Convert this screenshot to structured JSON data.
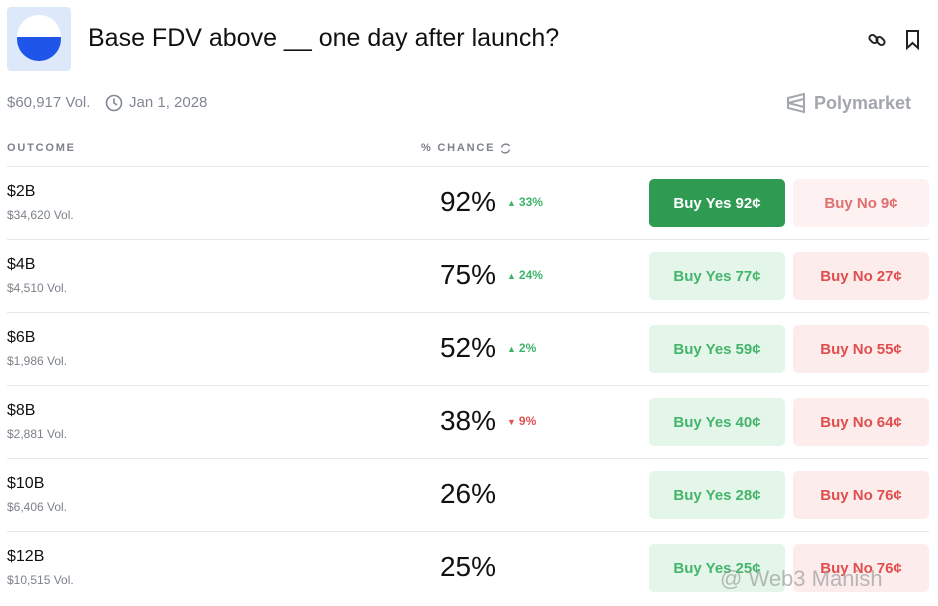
{
  "header": {
    "title": "Base FDV above __ one day after launch?",
    "volume": "$60,917 Vol.",
    "date": "Jan 1, 2028",
    "brand": "Polymarket"
  },
  "table": {
    "columns": [
      "OUTCOME",
      "% CHANCE"
    ],
    "buy_yes": "Buy Yes",
    "buy_no": "Buy No",
    "rows": [
      {
        "outcome": "$2B",
        "volume": "$34,620 Vol.",
        "chance": "92%",
        "change": "33%",
        "trend": "up",
        "yes_price": "92¢",
        "no_price": "9¢",
        "selected": true
      },
      {
        "outcome": "$4B",
        "volume": "$4,510 Vol.",
        "chance": "75%",
        "change": "24%",
        "trend": "up",
        "yes_price": "77¢",
        "no_price": "27¢"
      },
      {
        "outcome": "$6B",
        "volume": "$1,986 Vol.",
        "chance": "52%",
        "change": "2%",
        "trend": "up",
        "yes_price": "59¢",
        "no_price": "55¢"
      },
      {
        "outcome": "$8B",
        "volume": "$2,881 Vol.",
        "chance": "38%",
        "change": "9%",
        "trend": "down",
        "yes_price": "40¢",
        "no_price": "64¢"
      },
      {
        "outcome": "$10B",
        "volume": "$6,406 Vol.",
        "chance": "26%",
        "yes_price": "28¢",
        "no_price": "76¢"
      },
      {
        "outcome": "$12B",
        "volume": "$10,515 Vol.",
        "chance": "25%",
        "yes_price": "25¢",
        "no_price": "76¢"
      }
    ]
  },
  "watermark": "@ Web3 Manish"
}
